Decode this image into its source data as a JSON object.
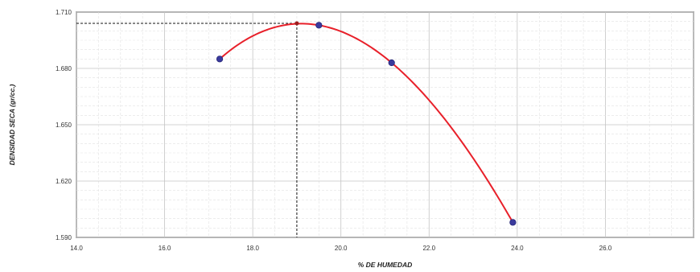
{
  "chart_data": {
    "type": "line",
    "xlabel": "% DE HUMEDAD",
    "ylabel": "DENSIDAD SECA (gr/cc.)",
    "xlim": [
      14.0,
      28.0
    ],
    "ylim": [
      1.59,
      1.71
    ],
    "x_ticks": [
      "14.0",
      "16.0",
      "18.0",
      "20.0",
      "22.0",
      "24.0",
      "26.0"
    ],
    "y_ticks": [
      "1.590",
      "1.620",
      "1.650",
      "1.680",
      "1.710"
    ],
    "grid": true,
    "series": [
      {
        "points": [
          {
            "x": 17.25,
            "y": 1.685
          },
          {
            "x": 19.5,
            "y": 1.703
          },
          {
            "x": 21.15,
            "y": 1.683
          },
          {
            "x": 23.9,
            "y": 1.598
          }
        ],
        "line_color": "#e8202a",
        "marker_color": "#3a3a9c"
      }
    ],
    "optimum": {
      "x": 19.0,
      "y": 1.704
    }
  }
}
